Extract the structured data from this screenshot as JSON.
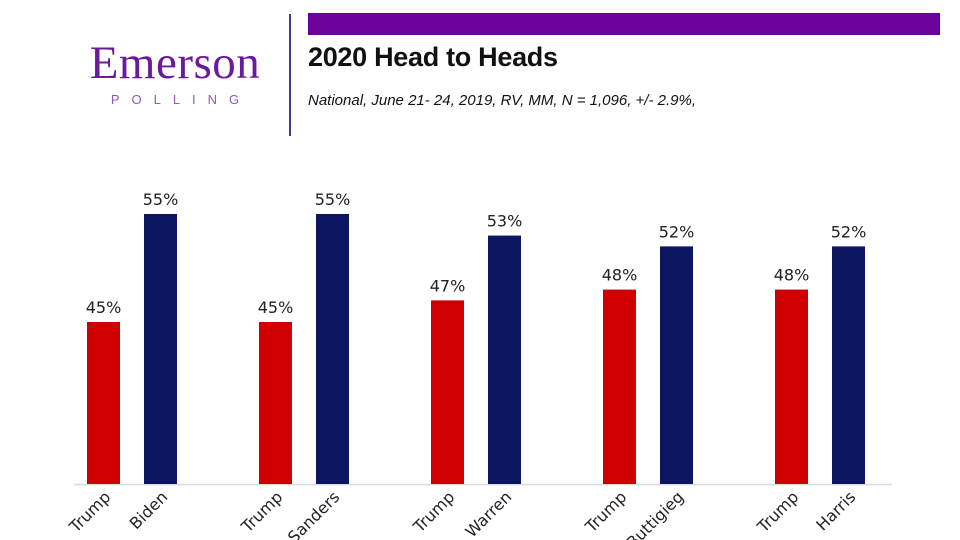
{
  "logo": {
    "main": "Emerson",
    "sub": "POLLING"
  },
  "header": {
    "title": "2020 Head to Heads",
    "subtitle": "National, June 21- 24, 2019, RV, MM, N = 1,096,  +/- 2.9%,"
  },
  "colors": {
    "accent": "#6b0299",
    "trump": "#d10000",
    "dem": "#0b1560",
    "divider": "#3b3f8f"
  },
  "chart_data": {
    "type": "bar",
    "title": "2020 Head to Heads",
    "xlabel": "",
    "ylabel": "",
    "ylim": [
      30,
      60
    ],
    "grid": false,
    "legend": "none",
    "categories": [
      "Trump",
      "Biden",
      "Trump",
      "Sanders",
      "Trump",
      "Warren",
      "Trump",
      "Buttigieg",
      "Trump",
      "Harris"
    ],
    "groups": [
      {
        "matchup": [
          "Trump",
          "Biden"
        ],
        "values": [
          45,
          55
        ],
        "labels": [
          "45%",
          "55%"
        ]
      },
      {
        "matchup": [
          "Trump",
          "Sanders"
        ],
        "values": [
          45,
          55
        ],
        "labels": [
          "45%",
          "55%"
        ]
      },
      {
        "matchup": [
          "Trump",
          "Warren"
        ],
        "values": [
          47,
          53
        ],
        "labels": [
          "47%",
          "53%"
        ]
      },
      {
        "matchup": [
          "Trump",
          "Buttigieg"
        ],
        "values": [
          48,
          52
        ],
        "labels": [
          "48%",
          "52%"
        ]
      },
      {
        "matchup": [
          "Trump",
          "Harris"
        ],
        "values": [
          48,
          52
        ],
        "labels": [
          "48%",
          "52%"
        ]
      }
    ]
  }
}
